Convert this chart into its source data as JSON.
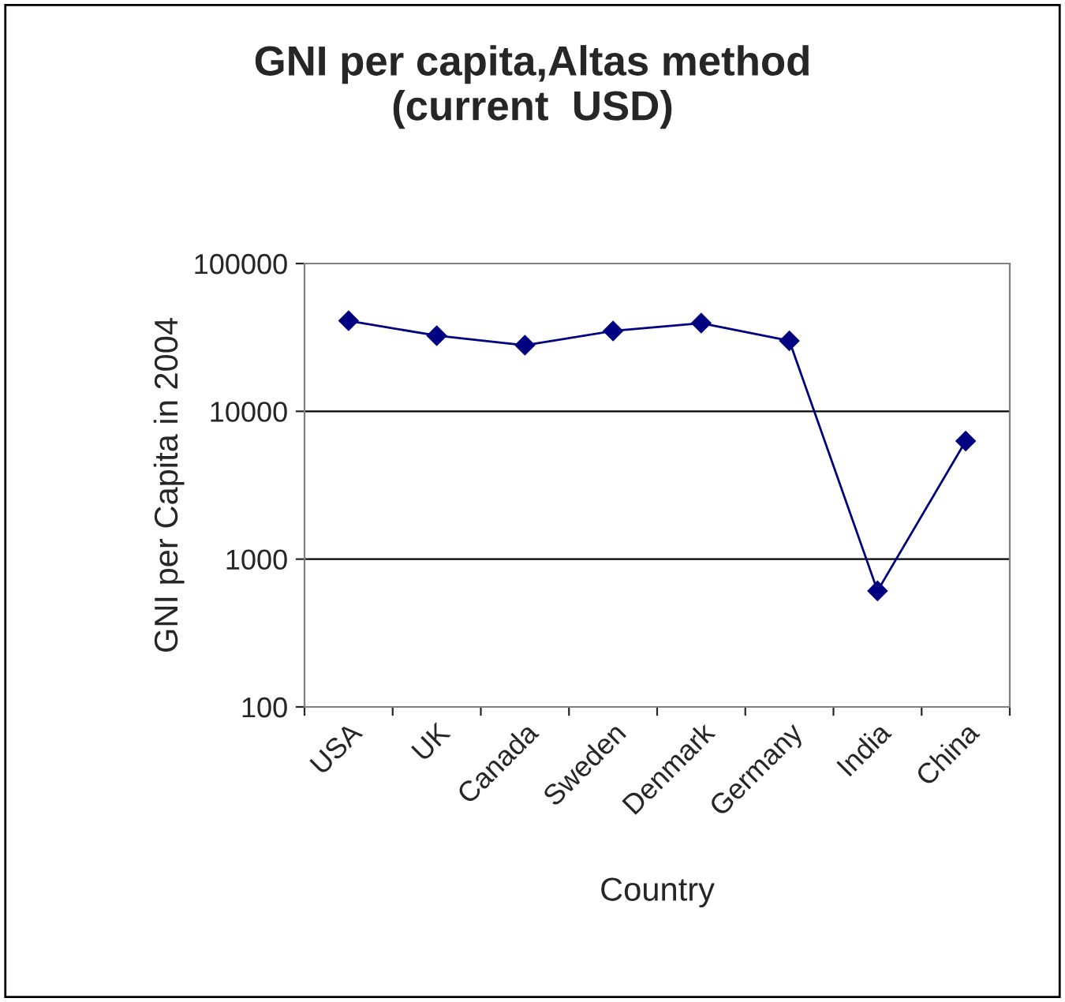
{
  "chart_data": {
    "type": "line",
    "title": "GNI per capita,Altas method\n(current  USD)",
    "xlabel": "Country",
    "ylabel": "GNI per Capita in 2004",
    "categories": [
      "USA",
      "UK",
      "Canada",
      "Sweden",
      "Denmark",
      "Germany",
      "India",
      "China"
    ],
    "series": [
      {
        "color": "#000080",
        "values": [
          41000,
          32500,
          28000,
          35000,
          39500,
          30000,
          610,
          6300
        ]
      }
    ],
    "log": "y",
    "ylim": [
      100,
      100000
    ],
    "yticks": [
      100,
      1000,
      10000,
      100000
    ],
    "grid": "y",
    "marker": "diamond",
    "line_style": "solid",
    "legend": false
  }
}
